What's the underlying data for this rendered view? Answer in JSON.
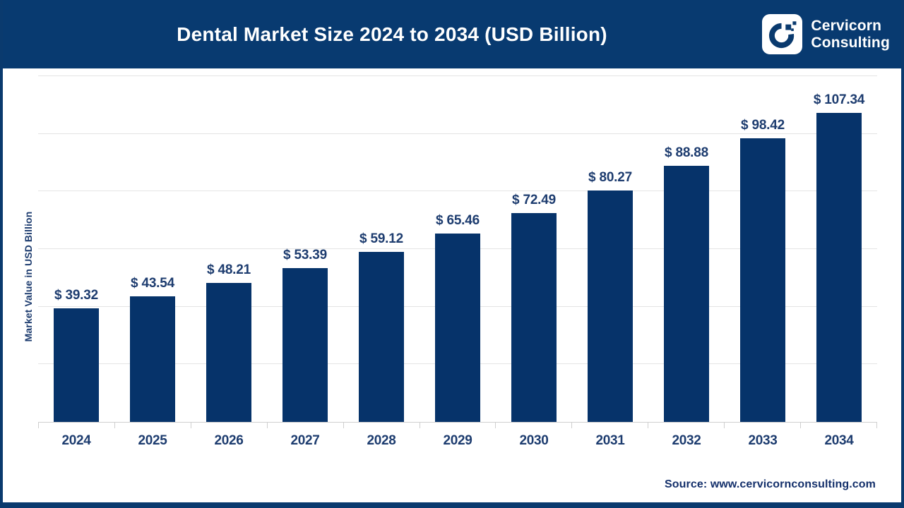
{
  "header": {
    "title": "Dental Market Size 2024 to 2034 (USD Billion)",
    "logo": {
      "icon": "cervicorn-c-logo",
      "line1": "Cervicorn",
      "line2": "Consulting"
    }
  },
  "y_axis": {
    "label": "Market Value in USD Billion"
  },
  "footer": {
    "source": "Source: www.cervicornconsulting.com"
  },
  "colors": {
    "header_bg": "#083a70",
    "frame_border": "#0a3a6e",
    "bar": "#06336a",
    "value_label": "#1d3c6f",
    "gridline": "#e4e4e4",
    "title_text": "#ffffff"
  },
  "chart_data": {
    "type": "bar",
    "title": "Dental Market Size 2024 to 2034 (USD Billion)",
    "categories": [
      "2024",
      "2025",
      "2026",
      "2027",
      "2028",
      "2029",
      "2030",
      "2031",
      "2032",
      "2033",
      "2034"
    ],
    "values": [
      39.32,
      43.54,
      48.21,
      53.39,
      59.12,
      65.46,
      72.49,
      80.27,
      88.88,
      98.42,
      107.34
    ],
    "value_prefix": "$ ",
    "xlabel": "",
    "ylabel": "Market Value in USD Billion",
    "ylim": [
      0,
      120
    ],
    "gridline_step": 20,
    "grid": "horizontal",
    "legend": "none",
    "y_tick_labels_visible": false
  }
}
